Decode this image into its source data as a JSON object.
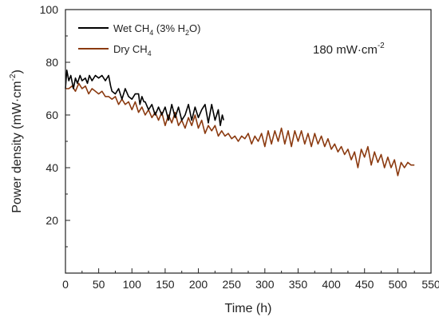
{
  "chart_data": {
    "type": "line",
    "title": "",
    "xlabel": "Time (h)",
    "ylabel": "Power density (mW·cm⁻²)",
    "xlim": [
      0,
      550
    ],
    "ylim": [
      0,
      100
    ],
    "x_ticks": [
      0,
      50,
      100,
      150,
      200,
      250,
      300,
      350,
      400,
      450,
      500,
      550
    ],
    "y_ticks": [
      20,
      40,
      60,
      80,
      100
    ],
    "grid": false,
    "legend_position": "top-left",
    "annotation": "180 mW·cm⁻²",
    "series": [
      {
        "name": "Wet CH4 (3% H2O)",
        "color": "#000000",
        "x": [
          0,
          2,
          5,
          8,
          12,
          15,
          18,
          22,
          25,
          30,
          33,
          36,
          40,
          45,
          50,
          55,
          60,
          65,
          68,
          70,
          75,
          80,
          85,
          90,
          95,
          100,
          105,
          110,
          112,
          115,
          118,
          120,
          125,
          130,
          135,
          140,
          145,
          150,
          155,
          160,
          165,
          170,
          175,
          180,
          185,
          190,
          195,
          200,
          205,
          210,
          215,
          220,
          225,
          230,
          233,
          236,
          238
        ],
        "y": [
          70,
          77,
          73,
          75,
          70,
          74,
          72,
          75,
          73,
          74,
          72,
          75,
          73,
          75,
          74,
          75,
          73,
          75,
          71,
          69,
          68,
          70,
          66,
          70,
          67,
          66,
          68,
          68,
          64,
          67,
          65,
          65,
          62,
          64,
          60,
          63,
          60,
          63,
          58,
          64,
          59,
          63,
          58,
          60,
          64,
          58,
          63,
          59,
          62,
          64,
          57,
          64,
          58,
          62,
          56,
          60,
          58
        ]
      },
      {
        "name": "Dry CH4",
        "color": "#8B3A10",
        "x": [
          0,
          5,
          10,
          15,
          20,
          25,
          30,
          35,
          40,
          45,
          50,
          55,
          60,
          65,
          70,
          75,
          80,
          85,
          90,
          95,
          100,
          105,
          110,
          115,
          120,
          125,
          130,
          135,
          140,
          145,
          150,
          155,
          160,
          165,
          170,
          175,
          180,
          185,
          190,
          195,
          200,
          205,
          210,
          215,
          220,
          225,
          230,
          235,
          240,
          245,
          250,
          255,
          260,
          265,
          270,
          275,
          280,
          285,
          290,
          295,
          300,
          305,
          310,
          315,
          320,
          325,
          330,
          335,
          340,
          345,
          350,
          355,
          360,
          365,
          370,
          375,
          380,
          385,
          390,
          395,
          400,
          405,
          410,
          415,
          420,
          425,
          430,
          435,
          440,
          445,
          450,
          455,
          460,
          465,
          470,
          475,
          480,
          485,
          490,
          495,
          500,
          505,
          510,
          515,
          520,
          525
        ],
        "y": [
          70,
          70,
          71,
          69,
          72,
          70,
          71,
          68,
          70,
          69,
          68,
          69,
          67,
          67,
          66,
          67,
          64,
          66,
          64,
          65,
          62,
          65,
          61,
          63,
          60,
          62,
          59,
          61,
          58,
          61,
          56,
          60,
          57,
          61,
          56,
          58,
          55,
          59,
          56,
          60,
          55,
          58,
          53,
          56,
          54,
          56,
          52,
          54,
          52,
          53,
          51,
          52,
          50,
          52,
          51,
          53,
          49,
          52,
          50,
          53,
          48,
          54,
          49,
          54,
          50,
          55,
          49,
          54,
          48,
          54,
          50,
          54,
          49,
          53,
          48,
          53,
          49,
          52,
          48,
          51,
          47,
          49,
          46,
          48,
          45,
          47,
          43,
          46,
          40,
          47,
          44,
          48,
          41,
          46,
          42,
          45,
          40,
          44,
          40,
          43,
          37,
          42,
          40,
          42,
          41,
          41
        ]
      }
    ]
  }
}
